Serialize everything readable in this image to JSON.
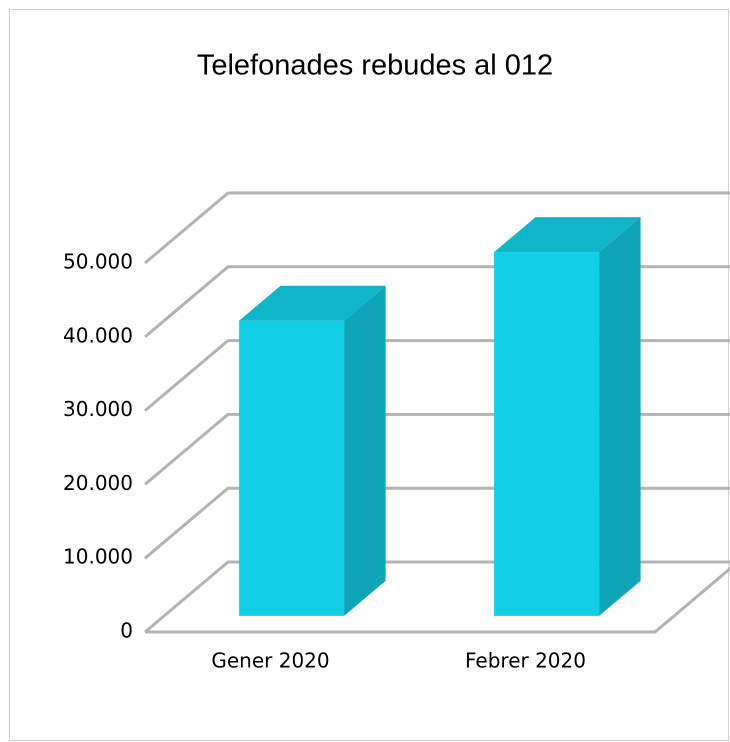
{
  "chart_data": {
    "type": "bar3d",
    "title": "Telefonades rebudes al 012",
    "categories": [
      "Gener 2020",
      "Febrer 2020"
    ],
    "values": [
      40000,
      49300
    ],
    "color": "#12cfe5",
    "ylim": [
      0,
      50000
    ],
    "yticks": [
      0,
      {
        "value": 10000,
        "label": "10.000"
      },
      {
        "value": 20000,
        "label": "20.000"
      },
      {
        "value": 30000,
        "label": "30.000"
      },
      {
        "value": 40000,
        "label": "40.000"
      },
      {
        "value": 50000,
        "label": "50.000"
      }
    ],
    "grid": true
  }
}
